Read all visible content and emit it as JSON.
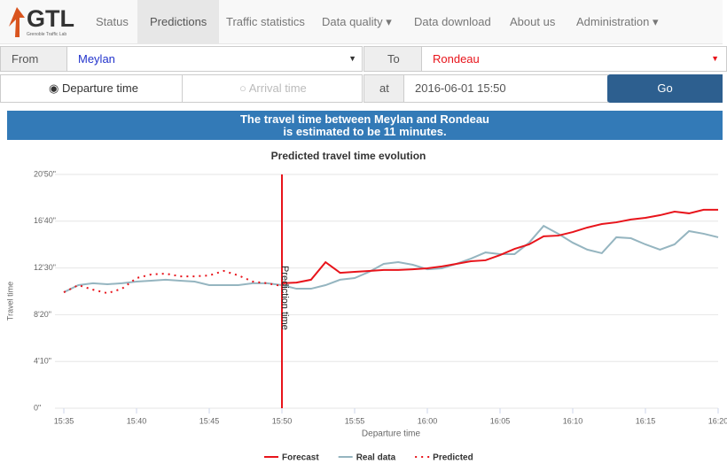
{
  "nav": {
    "logo": "GTL",
    "logo_sub": "Grenoble Traffic Lab",
    "items": [
      "Status",
      "Predictions",
      "Traffic statistics",
      "Data quality",
      "Data download",
      "About us",
      "Administration"
    ]
  },
  "form": {
    "from_label": "From",
    "from_value": "Meylan",
    "to_label": "To",
    "to_value": "Rondeau",
    "departure": "Departure time",
    "arrival": "Arrival time",
    "at_label": "at",
    "datetime": "2016-06-01 15:50",
    "go": "Go"
  },
  "banner": {
    "line1": "The travel time between Meylan and Rondeau",
    "line2": "is estimated to be 11 minutes."
  },
  "chart_data": {
    "type": "line",
    "title": "Predicted travel time evolution",
    "x_label": "Departure time",
    "y_label": "Travel time",
    "x": [
      935,
      936,
      937,
      938,
      939,
      940,
      941,
      942,
      943,
      944,
      945,
      946,
      947,
      948,
      949,
      950,
      951,
      952,
      953,
      954,
      955,
      956,
      957,
      958,
      959,
      960,
      961,
      962,
      963,
      964,
      965,
      966,
      967,
      968,
      969,
      970,
      971,
      972,
      973,
      974,
      975,
      976,
      977,
      978,
      979,
      980
    ],
    "xlim": [
      935,
      980
    ],
    "xticks": [
      {
        "value": 935,
        "label": "15:35"
      },
      {
        "value": 940,
        "label": "15:40"
      },
      {
        "value": 945,
        "label": "15:45"
      },
      {
        "value": 950,
        "label": "15:50"
      },
      {
        "value": 955,
        "label": "15:55"
      },
      {
        "value": 960,
        "label": "16:00"
      },
      {
        "value": 965,
        "label": "16:05"
      },
      {
        "value": 970,
        "label": "16:10"
      },
      {
        "value": 975,
        "label": "16:15"
      },
      {
        "value": 980,
        "label": "16:20"
      }
    ],
    "ylim": [
      0,
      1250
    ],
    "yticks": [
      {
        "value": 0,
        "label": "0\""
      },
      {
        "value": 250,
        "label": "4'10\""
      },
      {
        "value": 500,
        "label": "8'20\""
      },
      {
        "value": 750,
        "label": "12'30\""
      },
      {
        "value": 1000,
        "label": "16'40\""
      },
      {
        "value": 1250,
        "label": "20'50\""
      }
    ],
    "grid": true,
    "annotation": {
      "x": 950,
      "label": "Prediction time",
      "color": "#e8141b"
    },
    "series": [
      {
        "name": "Forecast",
        "color": "#e8141b",
        "style": "solid",
        "values": [
          null,
          null,
          null,
          null,
          null,
          null,
          null,
          null,
          null,
          null,
          null,
          null,
          null,
          null,
          null,
          668,
          672,
          687,
          781,
          724,
          729,
          734,
          739,
          739,
          743,
          748,
          758,
          772,
          786,
          791,
          819,
          852,
          876,
          919,
          923,
          942,
          966,
          985,
          994,
          1009,
          1018,
          1032,
          1051,
          1042,
          1061,
          1061
        ]
      },
      {
        "name": "Real data",
        "color": "#95b5c0",
        "style": "solid",
        "values": [
          620,
          658,
          668,
          663,
          668,
          677,
          682,
          687,
          682,
          677,
          658,
          658,
          658,
          668,
          668,
          658,
          639,
          639,
          658,
          687,
          696,
          729,
          772,
          781,
          767,
          743,
          748,
          772,
          800,
          833,
          824,
          824,
          885,
          975,
          933,
          885,
          848,
          829,
          914,
          909,
          876,
          848,
          876,
          947,
          933,
          914
        ]
      },
      {
        "name": "Predicted",
        "color": "#e8141b",
        "style": "dotted",
        "values": [
          620,
          658,
          634,
          615,
          639,
          696,
          715,
          720,
          705,
          705,
          710,
          734,
          710,
          677,
          668,
          653,
          null,
          null,
          null,
          null,
          null,
          null,
          null,
          null,
          null,
          null,
          null,
          null,
          null,
          null,
          null,
          null,
          null,
          null,
          null,
          null,
          null,
          null,
          null,
          null,
          null,
          null,
          null,
          null,
          null,
          null
        ]
      }
    ]
  }
}
